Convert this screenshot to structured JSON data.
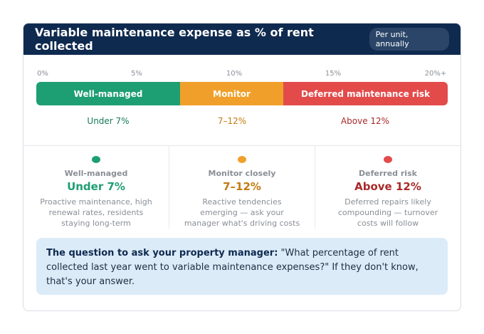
{
  "header": {
    "title": "Variable maintenance expense as % of rent collected",
    "badge": "Per unit, annually"
  },
  "scale": {
    "ticks": [
      "0%",
      "5%",
      "10%",
      "15%",
      "20%+"
    ],
    "segments": [
      {
        "label": "Well-managed",
        "range": "Under 7%",
        "color": "#1e9e73",
        "range_color": "#167a59"
      },
      {
        "label": "Monitor",
        "range": "7–12%",
        "color": "#f0a02a",
        "range_color": "#c47a10"
      },
      {
        "label": "Deferred maintenance risk",
        "range": "Above 12%",
        "color": "#e34b4b",
        "range_color": "#a82a2a"
      }
    ]
  },
  "tiers": [
    {
      "label": "Well-managed",
      "value": "Under 7%",
      "color": "#1e9e73",
      "text_color": "#1e9e73",
      "desc": "Proactive maintenance, high renewal rates, residents staying long-term"
    },
    {
      "label": "Monitor closely",
      "value": "7–12%",
      "color": "#f0a02a",
      "text_color": "#c47a10",
      "desc": "Reactive tendencies emerging — ask your manager what's driving costs"
    },
    {
      "label": "Deferred risk",
      "value": "Above 12%",
      "color": "#e34b4b",
      "text_color": "#a82a2a",
      "desc": "Deferred repairs likely compounding — turnover costs will follow"
    }
  ],
  "callout": {
    "lead": "The question to ask your property manager:",
    "body": " \"What percentage of rent collected last year went to variable maintenance expenses?\" If they don't know, that's your answer."
  }
}
